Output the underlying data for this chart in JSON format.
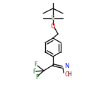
{
  "background": "#ffffff",
  "bond_color": "#000000",
  "atom_colors": {
    "O": "#ff0000",
    "N": "#0000ff",
    "Si": "#c8a882",
    "F": "#006400",
    "C": "#000000",
    "H": "#000000"
  },
  "figsize": [
    1.5,
    1.5
  ],
  "dpi": 100,
  "lw": 0.9
}
